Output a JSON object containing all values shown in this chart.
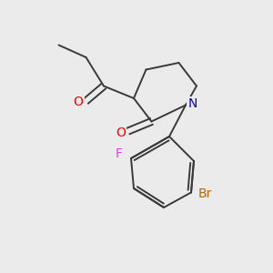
{
  "background_color": "#ebebeb",
  "bond_color": "#3a3a3a",
  "atom_colors": {
    "O": "#ff0000",
    "N": "#0000cc",
    "F": "#cc44cc",
    "Br": "#bb6600"
  },
  "figsize": [
    3.0,
    3.0
  ],
  "dpi": 100
}
